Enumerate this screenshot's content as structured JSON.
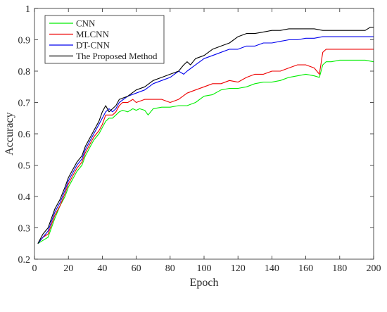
{
  "chart_data": {
    "type": "line",
    "title": "",
    "xlabel": "Epoch",
    "ylabel": "Accuracy",
    "xlim": [
      0,
      200
    ],
    "ylim": [
      0.2,
      1.0
    ],
    "xticks": [
      0,
      20,
      40,
      60,
      80,
      100,
      120,
      140,
      160,
      180,
      200
    ],
    "yticks": [
      0.2,
      0.3,
      0.4,
      0.5,
      0.6,
      0.7,
      0.8,
      0.9,
      1.0
    ],
    "grid": false,
    "legend_position": "top-left",
    "series": [
      {
        "name": "CNN",
        "color": "#00ee00",
        "points": [
          [
            2,
            0.25
          ],
          [
            5,
            0.26
          ],
          [
            8,
            0.27
          ],
          [
            10,
            0.3
          ],
          [
            12,
            0.33
          ],
          [
            15,
            0.37
          ],
          [
            18,
            0.4
          ],
          [
            20,
            0.43
          ],
          [
            22,
            0.45
          ],
          [
            25,
            0.48
          ],
          [
            28,
            0.5
          ],
          [
            30,
            0.53
          ],
          [
            33,
            0.56
          ],
          [
            35,
            0.58
          ],
          [
            38,
            0.6
          ],
          [
            40,
            0.62
          ],
          [
            42,
            0.64
          ],
          [
            44,
            0.65
          ],
          [
            46,
            0.65
          ],
          [
            48,
            0.66
          ],
          [
            50,
            0.67
          ],
          [
            52,
            0.675
          ],
          [
            55,
            0.67
          ],
          [
            58,
            0.68
          ],
          [
            60,
            0.675
          ],
          [
            62,
            0.68
          ],
          [
            65,
            0.675
          ],
          [
            67,
            0.66
          ],
          [
            70,
            0.68
          ],
          [
            75,
            0.685
          ],
          [
            80,
            0.685
          ],
          [
            85,
            0.69
          ],
          [
            90,
            0.69
          ],
          [
            95,
            0.7
          ],
          [
            100,
            0.72
          ],
          [
            105,
            0.725
          ],
          [
            110,
            0.74
          ],
          [
            115,
            0.745
          ],
          [
            120,
            0.745
          ],
          [
            125,
            0.75
          ],
          [
            130,
            0.76
          ],
          [
            135,
            0.765
          ],
          [
            140,
            0.765
          ],
          [
            145,
            0.77
          ],
          [
            150,
            0.78
          ],
          [
            155,
            0.785
          ],
          [
            160,
            0.79
          ],
          [
            165,
            0.785
          ],
          [
            168,
            0.78
          ],
          [
            170,
            0.82
          ],
          [
            172,
            0.83
          ],
          [
            175,
            0.83
          ],
          [
            180,
            0.835
          ],
          [
            185,
            0.835
          ],
          [
            190,
            0.835
          ],
          [
            195,
            0.835
          ],
          [
            200,
            0.83
          ]
        ]
      },
      {
        "name": "MLCNN",
        "color": "#ee0000",
        "points": [
          [
            2,
            0.25
          ],
          [
            5,
            0.27
          ],
          [
            8,
            0.28
          ],
          [
            10,
            0.31
          ],
          [
            12,
            0.34
          ],
          [
            15,
            0.37
          ],
          [
            18,
            0.41
          ],
          [
            20,
            0.44
          ],
          [
            22,
            0.46
          ],
          [
            25,
            0.49
          ],
          [
            28,
            0.51
          ],
          [
            30,
            0.54
          ],
          [
            33,
            0.57
          ],
          [
            35,
            0.59
          ],
          [
            38,
            0.61
          ],
          [
            40,
            0.63
          ],
          [
            42,
            0.66
          ],
          [
            44,
            0.66
          ],
          [
            46,
            0.66
          ],
          [
            48,
            0.67
          ],
          [
            50,
            0.69
          ],
          [
            52,
            0.7
          ],
          [
            55,
            0.7
          ],
          [
            58,
            0.71
          ],
          [
            60,
            0.7
          ],
          [
            65,
            0.71
          ],
          [
            70,
            0.71
          ],
          [
            75,
            0.71
          ],
          [
            80,
            0.7
          ],
          [
            85,
            0.71
          ],
          [
            90,
            0.73
          ],
          [
            95,
            0.74
          ],
          [
            100,
            0.75
          ],
          [
            105,
            0.76
          ],
          [
            110,
            0.76
          ],
          [
            115,
            0.77
          ],
          [
            120,
            0.765
          ],
          [
            125,
            0.78
          ],
          [
            130,
            0.79
          ],
          [
            135,
            0.79
          ],
          [
            140,
            0.8
          ],
          [
            145,
            0.8
          ],
          [
            150,
            0.81
          ],
          [
            155,
            0.82
          ],
          [
            160,
            0.82
          ],
          [
            165,
            0.81
          ],
          [
            168,
            0.79
          ],
          [
            170,
            0.86
          ],
          [
            172,
            0.87
          ],
          [
            175,
            0.87
          ],
          [
            180,
            0.87
          ],
          [
            185,
            0.87
          ],
          [
            190,
            0.87
          ],
          [
            195,
            0.87
          ],
          [
            200,
            0.87
          ]
        ]
      },
      {
        "name": "DT-CNN",
        "color": "#0000ee",
        "points": [
          [
            2,
            0.25
          ],
          [
            5,
            0.27
          ],
          [
            8,
            0.29
          ],
          [
            10,
            0.32
          ],
          [
            12,
            0.35
          ],
          [
            15,
            0.38
          ],
          [
            18,
            0.42
          ],
          [
            20,
            0.45
          ],
          [
            22,
            0.47
          ],
          [
            25,
            0.5
          ],
          [
            28,
            0.52
          ],
          [
            30,
            0.55
          ],
          [
            33,
            0.58
          ],
          [
            35,
            0.6
          ],
          [
            38,
            0.63
          ],
          [
            40,
            0.65
          ],
          [
            42,
            0.67
          ],
          [
            44,
            0.68
          ],
          [
            46,
            0.67
          ],
          [
            48,
            0.68
          ],
          [
            50,
            0.7
          ],
          [
            55,
            0.72
          ],
          [
            60,
            0.73
          ],
          [
            65,
            0.74
          ],
          [
            70,
            0.76
          ],
          [
            75,
            0.77
          ],
          [
            80,
            0.78
          ],
          [
            85,
            0.8
          ],
          [
            88,
            0.79
          ],
          [
            90,
            0.8
          ],
          [
            95,
            0.82
          ],
          [
            100,
            0.84
          ],
          [
            105,
            0.85
          ],
          [
            110,
            0.86
          ],
          [
            115,
            0.87
          ],
          [
            120,
            0.87
          ],
          [
            125,
            0.88
          ],
          [
            130,
            0.88
          ],
          [
            135,
            0.89
          ],
          [
            140,
            0.89
          ],
          [
            145,
            0.895
          ],
          [
            150,
            0.9
          ],
          [
            155,
            0.9
          ],
          [
            160,
            0.905
          ],
          [
            165,
            0.905
          ],
          [
            170,
            0.91
          ],
          [
            175,
            0.91
          ],
          [
            180,
            0.91
          ],
          [
            185,
            0.91
          ],
          [
            190,
            0.91
          ],
          [
            195,
            0.91
          ],
          [
            200,
            0.91
          ]
        ]
      },
      {
        "name": "The Proposed Method",
        "color": "#000000",
        "points": [
          [
            2,
            0.25
          ],
          [
            5,
            0.28
          ],
          [
            8,
            0.3
          ],
          [
            10,
            0.33
          ],
          [
            12,
            0.36
          ],
          [
            15,
            0.39
          ],
          [
            18,
            0.43
          ],
          [
            20,
            0.46
          ],
          [
            22,
            0.48
          ],
          [
            25,
            0.51
          ],
          [
            28,
            0.53
          ],
          [
            30,
            0.56
          ],
          [
            33,
            0.59
          ],
          [
            35,
            0.61
          ],
          [
            38,
            0.64
          ],
          [
            40,
            0.67
          ],
          [
            42,
            0.69
          ],
          [
            44,
            0.67
          ],
          [
            46,
            0.68
          ],
          [
            48,
            0.69
          ],
          [
            50,
            0.71
          ],
          [
            55,
            0.72
          ],
          [
            60,
            0.74
          ],
          [
            65,
            0.75
          ],
          [
            70,
            0.77
          ],
          [
            75,
            0.78
          ],
          [
            80,
            0.79
          ],
          [
            85,
            0.8
          ],
          [
            88,
            0.82
          ],
          [
            90,
            0.83
          ],
          [
            92,
            0.82
          ],
          [
            95,
            0.84
          ],
          [
            100,
            0.85
          ],
          [
            105,
            0.87
          ],
          [
            110,
            0.88
          ],
          [
            115,
            0.89
          ],
          [
            120,
            0.91
          ],
          [
            125,
            0.92
          ],
          [
            130,
            0.92
          ],
          [
            135,
            0.925
          ],
          [
            140,
            0.93
          ],
          [
            145,
            0.93
          ],
          [
            150,
            0.935
          ],
          [
            155,
            0.935
          ],
          [
            160,
            0.935
          ],
          [
            165,
            0.935
          ],
          [
            170,
            0.93
          ],
          [
            175,
            0.93
          ],
          [
            180,
            0.93
          ],
          [
            185,
            0.93
          ],
          [
            190,
            0.93
          ],
          [
            195,
            0.93
          ],
          [
            198,
            0.94
          ],
          [
            200,
            0.94
          ]
        ]
      }
    ]
  }
}
